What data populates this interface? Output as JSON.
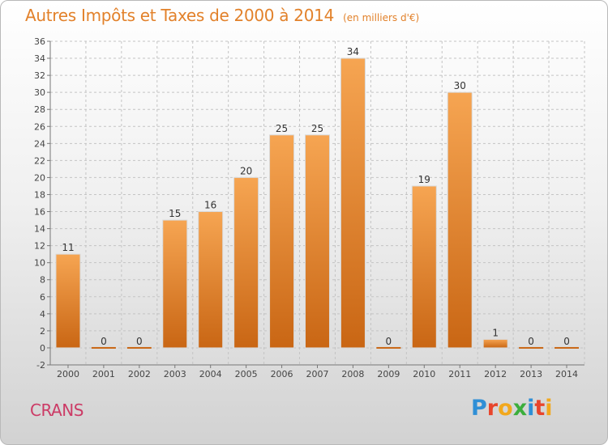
{
  "header": {
    "title": "Autres Impôts et Taxes de 2000 à 2014",
    "unit": "(en milliers d'€)"
  },
  "footer": {
    "commune": "CRANS",
    "brand": "Proxiti",
    "brand_colors": [
      "#2f8fd6",
      "#e8452c",
      "#f2a81d",
      "#3cae3c",
      "#2f8fd6",
      "#e8452c",
      "#f2a81d"
    ]
  },
  "chart_data": {
    "type": "bar",
    "title": "Autres Impôts et Taxes de 2000 à 2014",
    "subtitle": "(en milliers d'€)",
    "xlabel": "",
    "ylabel": "",
    "categories": [
      "2000",
      "2001",
      "2002",
      "2003",
      "2004",
      "2005",
      "2006",
      "2007",
      "2008",
      "2009",
      "2010",
      "2011",
      "2012",
      "2013",
      "2014"
    ],
    "values": [
      11,
      0,
      0,
      15,
      16,
      20,
      25,
      25,
      34,
      0,
      19,
      30,
      1,
      0,
      0
    ],
    "data_labels": [
      "11",
      "0",
      "0",
      "15",
      "16",
      "20",
      "25",
      "25",
      "34",
      "0",
      "19",
      "30",
      "1",
      "0",
      "0"
    ],
    "ylim": [
      -2,
      36
    ],
    "yticks": [
      -2,
      0,
      2,
      4,
      6,
      8,
      10,
      12,
      14,
      16,
      18,
      20,
      22,
      24,
      26,
      28,
      30,
      32,
      34,
      36
    ],
    "grid": true,
    "bar_color_top": "#f6a552",
    "bar_color_bottom": "#c96614",
    "legend": "none"
  }
}
